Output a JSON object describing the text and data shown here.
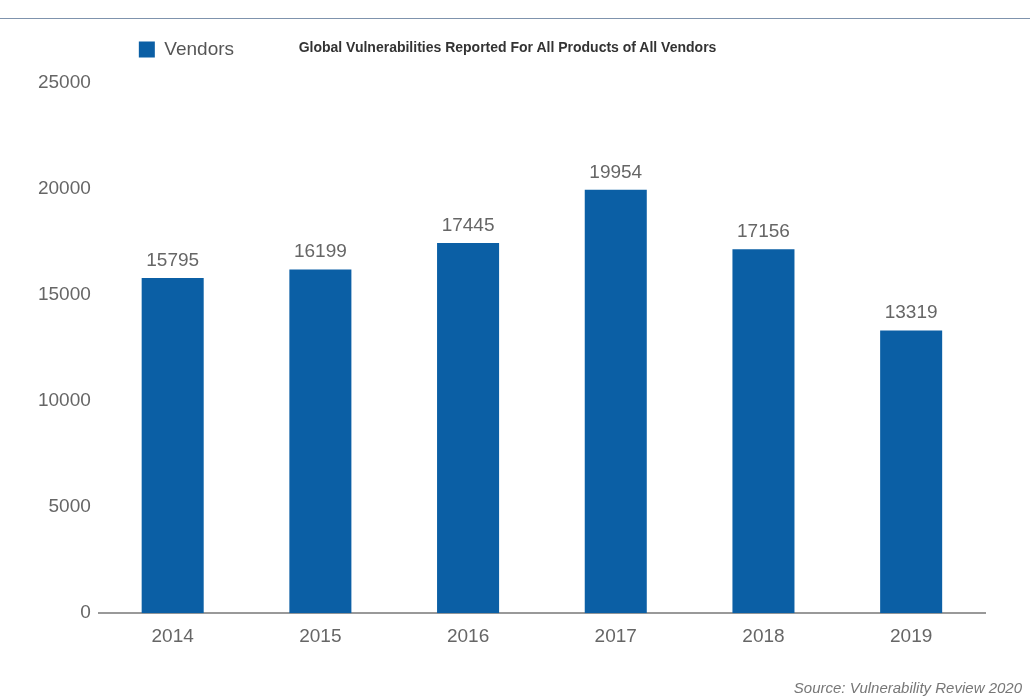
{
  "chart_data": {
    "type": "bar",
    "title": "Global Vulnerabilities Reported For All Products of All Vendors",
    "categories": [
      "2014",
      "2015",
      "2016",
      "2017",
      "2018",
      "2019"
    ],
    "series": [
      {
        "name": "Vendors",
        "color": "#0b5fa5",
        "values": [
          15795,
          16199,
          17445,
          19954,
          17156,
          13319
        ]
      }
    ],
    "ylim": [
      0,
      25000
    ],
    "yticks": [
      0,
      5000,
      10000,
      15000,
      20000,
      25000
    ],
    "grid": false,
    "legend": "top left",
    "data_labels": true,
    "annotations": [
      "Source: Vulnerability Review 2020"
    ]
  }
}
